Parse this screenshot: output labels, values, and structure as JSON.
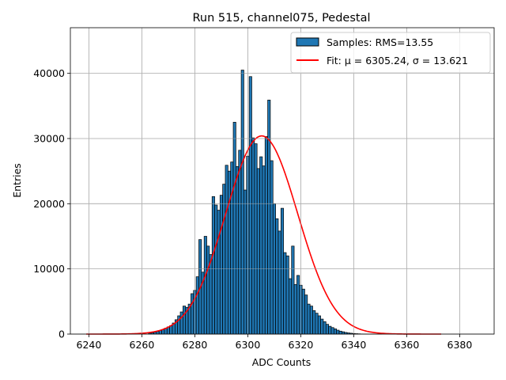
{
  "chart_data": {
    "type": "bar",
    "title": "Run 515, channel075, Pedestal",
    "xlabel": "ADC Counts",
    "ylabel": "Entries",
    "xlim": [
      6233,
      6393
    ],
    "ylim": [
      0,
      47000
    ],
    "xticks": [
      6240,
      6260,
      6280,
      6300,
      6320,
      6340,
      6360,
      6380
    ],
    "yticks": [
      0,
      10000,
      20000,
      30000,
      40000
    ],
    "grid": true,
    "legend_position": "top-right",
    "bin_width": 1,
    "histogram": {
      "name": "Samples: RMS=13.55",
      "color": "#1f77b4",
      "edgecolor": "#000000",
      "x": [
        6263,
        6264,
        6265,
        6266,
        6267,
        6268,
        6269,
        6270,
        6271,
        6272,
        6273,
        6274,
        6275,
        6276,
        6277,
        6278,
        6279,
        6280,
        6281,
        6282,
        6283,
        6284,
        6285,
        6286,
        6287,
        6288,
        6289,
        6290,
        6291,
        6292,
        6293,
        6294,
        6295,
        6296,
        6297,
        6298,
        6299,
        6300,
        6301,
        6302,
        6303,
        6304,
        6305,
        6306,
        6307,
        6308,
        6309,
        6310,
        6311,
        6312,
        6313,
        6314,
        6315,
        6316,
        6317,
        6318,
        6319,
        6320,
        6321,
        6322,
        6323,
        6324,
        6325,
        6326,
        6327,
        6328,
        6329,
        6330,
        6331,
        6332,
        6333,
        6334,
        6335,
        6336,
        6337,
        6338,
        6339,
        6340,
        6341,
        6342,
        6343,
        6344,
        6345,
        6346,
        6347,
        6348,
        6349,
        6350
      ],
      "values": [
        150,
        200,
        300,
        400,
        550,
        700,
        900,
        1100,
        1300,
        1700,
        2200,
        2800,
        3400,
        4300,
        4100,
        4600,
        6200,
        6700,
        8800,
        14500,
        9500,
        15000,
        13500,
        12200,
        21100,
        19800,
        19000,
        21300,
        23000,
        25900,
        25000,
        26400,
        32500,
        25700,
        28200,
        40500,
        22100,
        27300,
        39500,
        30100,
        29200,
        25400,
        27200,
        25800,
        30300,
        35900,
        26600,
        20000,
        17700,
        15800,
        19300,
        12500,
        12000,
        8500,
        13500,
        7600,
        9000,
        7500,
        6900,
        6000,
        4600,
        4300,
        3600,
        3200,
        2800,
        2300,
        1900,
        1500,
        1200,
        1000,
        800,
        600,
        450,
        350,
        250,
        180,
        130,
        90,
        60,
        40,
        20,
        10,
        8,
        5,
        3,
        2,
        1,
        1
      ]
    },
    "fit": {
      "name": "Fit: μ = 6305.24, σ = 13.621",
      "color": "#ff0000",
      "mu": 6305.24,
      "sigma": 13.621,
      "amplitude": 30400,
      "x_range": [
        6239,
        6373
      ]
    }
  }
}
